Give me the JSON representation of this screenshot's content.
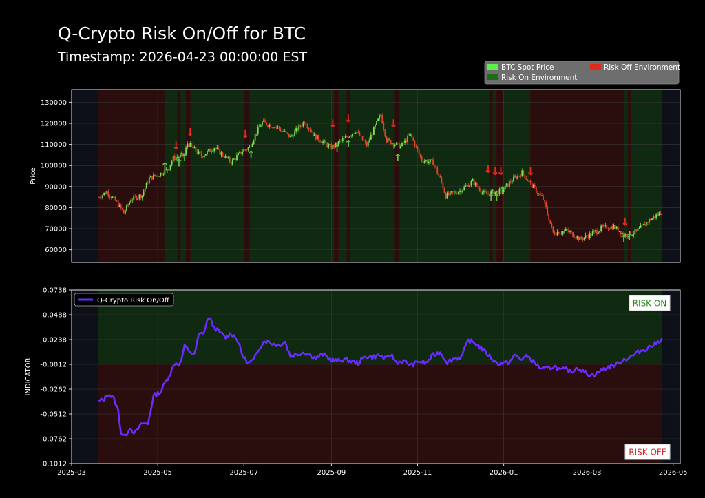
{
  "header": {
    "title": "Q-Crypto Risk On/Off for BTC",
    "subtitle": "Timestamp: 2026-04-23 00:00:00 EST"
  },
  "colors": {
    "background": "#000000",
    "up_candle": "#7ee04e",
    "down_candle": "#e0452b",
    "risk_on_fill": "#0f2a10",
    "risk_off_fill": "#2a0e0e",
    "outside_fill": "#0d1018",
    "indicator_line": "#6a2cff",
    "arrow_up": "#5fbf3f",
    "arrow_down": "#e02a1a",
    "risk_on_text": "#2e8b22",
    "risk_off_text": "#d8262a"
  },
  "chart_data": [
    {
      "type": "candlestick",
      "ylabel": "Price",
      "ylim": [
        54000,
        136000
      ],
      "yticks": [
        60000,
        70000,
        80000,
        90000,
        100000,
        110000,
        120000,
        130000
      ],
      "xlim": [
        "2025-03-01",
        "2026-05-06"
      ],
      "legend": {
        "position": "top-right",
        "entries": [
          {
            "label": "BTC Spot Price",
            "color": "#5ef04a"
          },
          {
            "label": "Risk Off Environment",
            "color": "#e02a1a"
          },
          {
            "label": "Risk On Environment",
            "color": "#1f6b1a"
          }
        ]
      },
      "price_path": [
        [
          "2025-03-20",
          85000
        ],
        [
          "2025-03-26",
          87500
        ],
        [
          "2025-04-02",
          82500
        ],
        [
          "2025-04-07",
          77500
        ],
        [
          "2025-04-12",
          84000
        ],
        [
          "2025-04-20",
          86000
        ],
        [
          "2025-04-25",
          94000
        ],
        [
          "2025-05-01",
          95500
        ],
        [
          "2025-05-08",
          98000
        ],
        [
          "2025-05-12",
          103500
        ],
        [
          "2025-05-20",
          105000
        ],
        [
          "2025-05-22",
          110500
        ],
        [
          "2025-06-01",
          104500
        ],
        [
          "2025-06-10",
          108500
        ],
        [
          "2025-06-22",
          101500
        ],
        [
          "2025-06-30",
          107000
        ],
        [
          "2025-07-05",
          108500
        ],
        [
          "2025-07-10",
          116000
        ],
        [
          "2025-07-14",
          120500
        ],
        [
          "2025-07-25",
          118000
        ],
        [
          "2025-08-03",
          113500
        ],
        [
          "2025-08-13",
          121000
        ],
        [
          "2025-08-20",
          114000
        ],
        [
          "2025-09-01",
          108500
        ],
        [
          "2025-09-10",
          112500
        ],
        [
          "2025-09-18",
          116500
        ],
        [
          "2025-09-26",
          109500
        ],
        [
          "2025-10-03",
          120000
        ],
        [
          "2025-10-06",
          124000
        ],
        [
          "2025-10-10",
          112000
        ],
        [
          "2025-10-20",
          109000
        ],
        [
          "2025-10-27",
          114500
        ],
        [
          "2025-11-04",
          102500
        ],
        [
          "2025-11-12",
          101500
        ],
        [
          "2025-11-18",
          92000
        ],
        [
          "2025-11-21",
          85500
        ],
        [
          "2025-12-01",
          88000
        ],
        [
          "2025-12-10",
          92500
        ],
        [
          "2025-12-18",
          86500
        ],
        [
          "2025-12-31",
          88000
        ],
        [
          "2026-01-06",
          92500
        ],
        [
          "2026-01-14",
          96500
        ],
        [
          "2026-01-22",
          89500
        ],
        [
          "2026-01-29",
          84000
        ],
        [
          "2026-02-05",
          68000
        ],
        [
          "2026-02-15",
          69000
        ],
        [
          "2026-02-24",
          65000
        ],
        [
          "2026-03-04",
          67500
        ],
        [
          "2026-03-12",
          70500
        ],
        [
          "2026-03-20",
          71000
        ],
        [
          "2026-03-28",
          67000
        ],
        [
          "2026-04-05",
          68500
        ],
        [
          "2026-04-14",
          74000
        ],
        [
          "2026-04-23",
          78000
        ]
      ],
      "regimes": [
        {
          "start": "2025-03-20",
          "end": "2025-05-06",
          "state": "Risk Off"
        },
        {
          "start": "2025-05-06",
          "end": "2025-05-15",
          "state": "Risk On"
        },
        {
          "start": "2025-05-15",
          "end": "2025-05-17",
          "state": "Risk Off"
        },
        {
          "start": "2025-05-17",
          "end": "2025-05-21",
          "state": "Risk On"
        },
        {
          "start": "2025-05-21",
          "end": "2025-05-24",
          "state": "Risk Off"
        },
        {
          "start": "2025-05-24",
          "end": "2025-07-01",
          "state": "Risk On"
        },
        {
          "start": "2025-07-01",
          "end": "2025-07-05",
          "state": "Risk Off"
        },
        {
          "start": "2025-07-05",
          "end": "2025-09-03",
          "state": "Risk On"
        },
        {
          "start": "2025-09-03",
          "end": "2025-09-06",
          "state": "Risk Off"
        },
        {
          "start": "2025-09-06",
          "end": "2025-09-12",
          "state": "Risk On"
        },
        {
          "start": "2025-09-12",
          "end": "2025-09-14",
          "state": "Risk Off"
        },
        {
          "start": "2025-09-14",
          "end": "2025-10-16",
          "state": "Risk On"
        },
        {
          "start": "2025-10-16",
          "end": "2025-10-19",
          "state": "Risk Off"
        },
        {
          "start": "2025-10-19",
          "end": "2025-12-22",
          "state": "Risk On"
        },
        {
          "start": "2025-12-22",
          "end": "2025-12-24",
          "state": "Risk Off"
        },
        {
          "start": "2025-12-24",
          "end": "2025-12-27",
          "state": "Risk On"
        },
        {
          "start": "2025-12-27",
          "end": "2025-12-31",
          "state": "Risk Off"
        },
        {
          "start": "2025-12-31",
          "end": "2026-01-20",
          "state": "Risk On"
        },
        {
          "start": "2026-01-20",
          "end": "2026-03-27",
          "state": "Risk Off"
        },
        {
          "start": "2026-03-27",
          "end": "2026-03-30",
          "state": "Risk On"
        },
        {
          "start": "2026-03-30",
          "end": "2026-04-01",
          "state": "Risk Off"
        },
        {
          "start": "2026-04-01",
          "end": "2026-04-23",
          "state": "Risk On"
        }
      ],
      "down_arrows": [
        [
          "2025-05-14",
          107500
        ],
        [
          "2025-05-24",
          114000
        ],
        [
          "2025-07-02",
          113000
        ],
        [
          "2025-09-02",
          118000
        ],
        [
          "2025-09-13",
          120500
        ],
        [
          "2025-10-15",
          118000
        ],
        [
          "2025-12-21",
          96500
        ],
        [
          "2025-12-26",
          95500
        ],
        [
          "2025-12-30",
          95500
        ],
        [
          "2026-01-20",
          95500
        ],
        [
          "2026-03-28",
          71500
        ]
      ],
      "up_arrows": [
        [
          "2025-05-06",
          98000
        ],
        [
          "2025-05-16",
          99500
        ],
        [
          "2025-05-20",
          102000
        ],
        [
          "2025-07-06",
          103500
        ],
        [
          "2025-09-05",
          106500
        ],
        [
          "2025-09-13",
          108500
        ],
        [
          "2025-10-18",
          102000
        ],
        [
          "2025-12-23",
          83000
        ],
        [
          "2025-12-27",
          83000
        ],
        [
          "2025-12-31",
          86500
        ],
        [
          "2026-03-27",
          63500
        ],
        [
          "2026-03-31",
          64500
        ]
      ]
    },
    {
      "type": "line",
      "ylabel": "INDICATOR",
      "ylim": [
        -0.1012,
        0.0738
      ],
      "yticks": [
        -0.1012,
        -0.0762,
        -0.0512,
        -0.0262,
        -0.0012,
        0.0238,
        0.0488,
        0.0738
      ],
      "threshold": -0.0012,
      "xlim": [
        "2025-03-01",
        "2026-05-06"
      ],
      "xticks": [
        "2025-03",
        "2025-05",
        "2025-07",
        "2025-09",
        "2025-11",
        "2026-01",
        "2026-03",
        "2026-05"
      ],
      "xtick_dates": [
        "2025-03-01",
        "2025-05-01",
        "2025-07-01",
        "2025-09-01",
        "2025-11-01",
        "2026-01-01",
        "2026-03-01",
        "2026-05-01"
      ],
      "regime_split": {
        "start": "2025-03-20",
        "end": "2026-04-23"
      },
      "labels": {
        "risk_on": "RISK ON",
        "risk_off": "RISK OFF"
      },
      "series": [
        {
          "name": "Q-Crypto Risk On/Off",
          "points": [
            [
              "2025-03-20",
              -0.0385
            ],
            [
              "2025-03-24",
              -0.0365
            ],
            [
              "2025-03-27",
              -0.0305
            ],
            [
              "2025-03-31",
              -0.036
            ],
            [
              "2025-04-03",
              -0.048
            ],
            [
              "2025-04-05",
              -0.07
            ],
            [
              "2025-04-08",
              -0.074
            ],
            [
              "2025-04-11",
              -0.065
            ],
            [
              "2025-04-15",
              -0.0705
            ],
            [
              "2025-04-20",
              -0.0605
            ],
            [
              "2025-04-24",
              -0.0615
            ],
            [
              "2025-04-28",
              -0.033
            ],
            [
              "2025-05-03",
              -0.029
            ],
            [
              "2025-05-06",
              -0.02
            ],
            [
              "2025-05-10",
              -0.01
            ],
            [
              "2025-05-13",
              0.0
            ],
            [
              "2025-05-17",
              -0.0005
            ],
            [
              "2025-05-20",
              0.017
            ],
            [
              "2025-05-23",
              0.013
            ],
            [
              "2025-05-27",
              0.008
            ],
            [
              "2025-05-30",
              0.028
            ],
            [
              "2025-06-03",
              0.032
            ],
            [
              "2025-06-06",
              0.047
            ],
            [
              "2025-06-10",
              0.036
            ],
            [
              "2025-06-14",
              0.031
            ],
            [
              "2025-06-18",
              0.026
            ],
            [
              "2025-06-22",
              0.03
            ],
            [
              "2025-06-26",
              0.025
            ],
            [
              "2025-06-30",
              0.008
            ],
            [
              "2025-07-04",
              0.0
            ],
            [
              "2025-07-08",
              0.003
            ],
            [
              "2025-07-12",
              0.016
            ],
            [
              "2025-07-16",
              0.023
            ],
            [
              "2025-07-21",
              0.02
            ],
            [
              "2025-07-26",
              0.018
            ],
            [
              "2025-07-30",
              0.022
            ],
            [
              "2025-08-03",
              0.007
            ],
            [
              "2025-08-08",
              0.009
            ],
            [
              "2025-08-12",
              0.011
            ],
            [
              "2025-08-16",
              0.009
            ],
            [
              "2025-08-21",
              0.005
            ],
            [
              "2025-08-26",
              0.009
            ],
            [
              "2025-08-31",
              0.004
            ],
            [
              "2025-09-05",
              0.002
            ],
            [
              "2025-09-10",
              0.004
            ],
            [
              "2025-09-15",
              0.002
            ],
            [
              "2025-09-20",
              0.0
            ],
            [
              "2025-09-25",
              0.007
            ],
            [
              "2025-09-30",
              0.006
            ],
            [
              "2025-10-05",
              0.008
            ],
            [
              "2025-10-10",
              0.004
            ],
            [
              "2025-10-13",
              0.009
            ],
            [
              "2025-10-17",
              0.001
            ],
            [
              "2025-10-22",
              0.002
            ],
            [
              "2025-10-28",
              -0.002
            ],
            [
              "2025-11-02",
              0.002
            ],
            [
              "2025-11-07",
              0.0
            ],
            [
              "2025-11-12",
              0.008
            ],
            [
              "2025-11-17",
              0.011
            ],
            [
              "2025-11-22",
              0.001
            ],
            [
              "2025-11-27",
              0.005
            ],
            [
              "2025-12-02",
              0.006
            ],
            [
              "2025-12-07",
              0.023
            ],
            [
              "2025-12-12",
              0.02
            ],
            [
              "2025-12-17",
              0.014
            ],
            [
              "2025-12-22",
              0.007
            ],
            [
              "2025-12-27",
              0.0
            ],
            [
              "2026-01-01",
              0.0
            ],
            [
              "2026-01-05",
              0.001
            ],
            [
              "2026-01-09",
              0.008
            ],
            [
              "2026-01-13",
              0.004
            ],
            [
              "2026-01-18",
              0.007
            ],
            [
              "2026-01-23",
              0.0
            ],
            [
              "2026-01-28",
              -0.006
            ],
            [
              "2026-02-02",
              -0.005
            ],
            [
              "2026-02-06",
              -0.003
            ],
            [
              "2026-02-10",
              -0.007
            ],
            [
              "2026-02-14",
              -0.006
            ],
            [
              "2026-02-18",
              -0.009
            ],
            [
              "2026-02-22",
              -0.004
            ],
            [
              "2026-02-26",
              -0.008
            ],
            [
              "2026-03-02",
              -0.011
            ],
            [
              "2026-03-06",
              -0.012
            ],
            [
              "2026-03-10",
              -0.008
            ],
            [
              "2026-03-14",
              -0.005
            ],
            [
              "2026-03-18",
              -0.003
            ],
            [
              "2026-03-22",
              -0.001
            ],
            [
              "2026-03-26",
              0.003
            ],
            [
              "2026-03-30",
              0.005
            ],
            [
              "2026-04-03",
              0.008
            ],
            [
              "2026-04-07",
              0.012
            ],
            [
              "2026-04-11",
              0.014
            ],
            [
              "2026-04-15",
              0.017
            ],
            [
              "2026-04-19",
              0.02
            ],
            [
              "2026-04-23",
              0.025
            ]
          ]
        }
      ]
    }
  ]
}
